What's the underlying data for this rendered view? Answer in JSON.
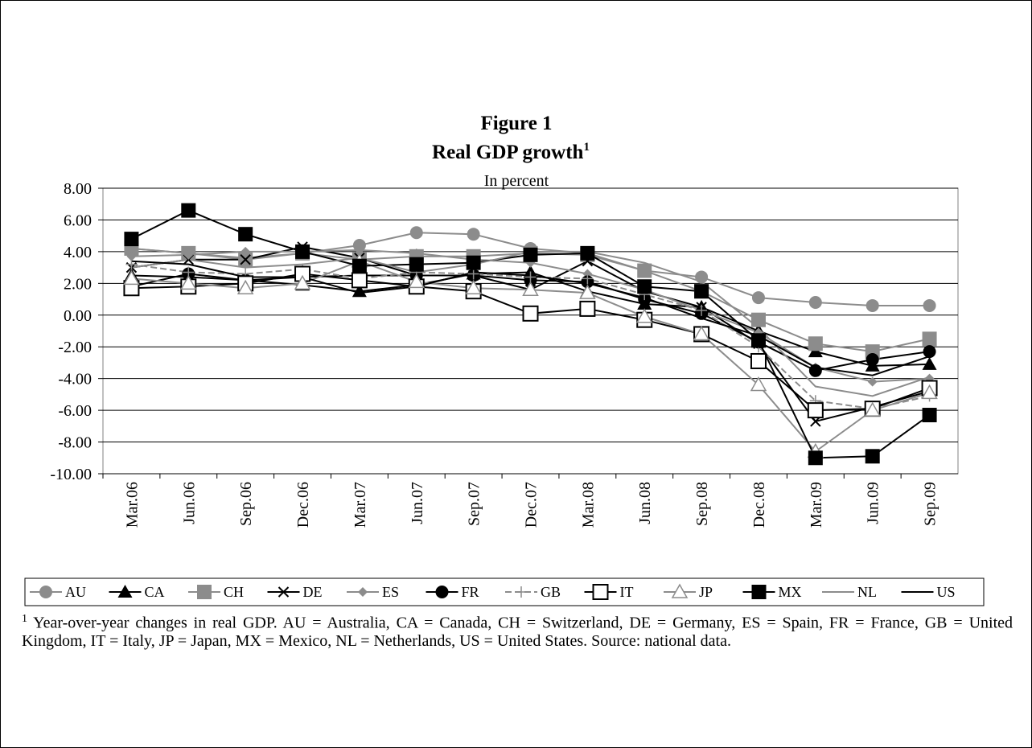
{
  "chart_data": {
    "type": "line",
    "title": "Figure 1",
    "subtitle": "Real GDP growth",
    "subtitle_footnote_mark": "1",
    "unit_label": "In percent",
    "categories": [
      "Mar.06",
      "Jun.06",
      "Sep.06",
      "Dec.06",
      "Mar.07",
      "Jun.07",
      "Sep.07",
      "Dec.07",
      "Mar.08",
      "Jun.08",
      "Sep.08",
      "Dec.08",
      "Mar.09",
      "Jun.09",
      "Sep.09"
    ],
    "ylim": [
      -10,
      8
    ],
    "yticks": [
      {
        "value": -10,
        "label": "-10.00"
      },
      {
        "value": -8,
        "label": "-8.00"
      },
      {
        "value": -6,
        "label": "-6.00"
      },
      {
        "value": -4,
        "label": "-4.00"
      },
      {
        "value": -2,
        "label": "-2.00"
      },
      {
        "value": 0,
        "label": "0.00"
      },
      {
        "value": 2,
        "label": "2.00"
      },
      {
        "value": 4,
        "label": "4.00"
      },
      {
        "value": 6,
        "label": "6.00"
      },
      {
        "value": 8,
        "label": "8.00"
      }
    ],
    "grid": true,
    "legend": "bottom",
    "series": [
      {
        "name": "AU",
        "color": "#8c8c8c",
        "marker": "circle",
        "values": [
          4.2,
          3.9,
          3.6,
          3.9,
          4.4,
          5.2,
          5.1,
          4.2,
          3.9,
          2.8,
          2.4,
          1.1,
          0.8,
          0.6,
          0.6
        ]
      },
      {
        "name": "CA",
        "color": "#000000",
        "marker": "triangle",
        "values": [
          2.5,
          2.4,
          2.2,
          1.9,
          1.5,
          1.9,
          2.6,
          2.7,
          1.5,
          0.7,
          0.5,
          -1.0,
          -2.3,
          -3.2,
          -3.1
        ]
      },
      {
        "name": "CH",
        "color": "#8c8c8c",
        "marker": "square",
        "values": [
          4.2,
          3.9,
          3.5,
          3.9,
          3.5,
          3.7,
          3.7,
          3.9,
          3.8,
          2.8,
          1.5,
          -0.3,
          -1.8,
          -2.3,
          -1.5
        ]
      },
      {
        "name": "DE",
        "color": "#000000",
        "marker": "x",
        "values": [
          3.0,
          3.5,
          3.5,
          4.3,
          3.6,
          2.5,
          2.5,
          1.6,
          3.4,
          1.5,
          0.5,
          -1.8,
          -6.7,
          -5.8,
          -4.8
        ]
      },
      {
        "name": "ES",
        "color": "#8c8c8c",
        "marker": "diamond",
        "values": [
          3.7,
          3.8,
          4.0,
          4.0,
          4.1,
          3.9,
          3.5,
          3.3,
          2.6,
          1.6,
          0.3,
          -1.1,
          -3.3,
          -4.2,
          -4.0
        ]
      },
      {
        "name": "FR",
        "color": "#000000",
        "marker": "circle",
        "values": [
          1.8,
          2.6,
          2.2,
          2.4,
          2.5,
          2.5,
          2.5,
          2.2,
          2.1,
          1.0,
          0.1,
          -1.7,
          -3.5,
          -2.8,
          -2.3
        ]
      },
      {
        "name": "GB",
        "color": "#8c8c8c",
        "marker": "plus",
        "dashed": true,
        "values": [
          3.2,
          2.7,
          2.6,
          2.9,
          2.3,
          2.7,
          2.6,
          2.4,
          2.3,
          1.3,
          0.3,
          -2.0,
          -5.4,
          -5.9,
          -5.1
        ]
      },
      {
        "name": "IT",
        "color": "#000000",
        "marker": "square-open",
        "values": [
          1.7,
          1.8,
          2.0,
          2.6,
          2.2,
          1.8,
          1.5,
          0.1,
          0.4,
          -0.3,
          -1.2,
          -2.9,
          -6.0,
          -5.9,
          -4.6
        ]
      },
      {
        "name": "JP",
        "color": "#8c8c8c",
        "marker": "triangle-open",
        "values": [
          2.3,
          2.0,
          1.7,
          2.0,
          3.4,
          2.1,
          1.7,
          1.6,
          1.4,
          -0.1,
          -1.2,
          -4.4,
          -8.6,
          -6.0,
          -4.9
        ]
      },
      {
        "name": "MX",
        "color": "#000000",
        "marker": "square",
        "values": [
          4.8,
          6.6,
          5.1,
          4.0,
          3.1,
          3.2,
          3.3,
          3.8,
          3.9,
          1.8,
          1.5,
          -1.6,
          -9.0,
          -8.9,
          -6.3
        ]
      },
      {
        "name": "NL",
        "color": "#8c8c8c",
        "marker": "none",
        "values": [
          3.0,
          3.5,
          3.0,
          3.2,
          3.6,
          2.7,
          3.2,
          4.0,
          4.0,
          3.3,
          2.1,
          -0.8,
          -4.5,
          -5.1,
          -3.9
        ]
      },
      {
        "name": "US",
        "color": "#000000",
        "marker": "none",
        "values": [
          3.4,
          3.2,
          2.4,
          2.4,
          1.4,
          1.8,
          2.7,
          2.5,
          2.0,
          1.1,
          -0.2,
          -1.3,
          -3.3,
          -3.8,
          -2.6
        ]
      }
    ],
    "footnote": {
      "mark": "1",
      "text": "Year-over-year changes in real GDP. AU = Australia, CA = Canada, CH = Switzerland, DE = Germany, ES = Spain, FR = France, GB = United Kingdom, IT = Italy, JP = Japan, MX = Mexico, NL = Netherlands, US = United States. Source: national data."
    }
  }
}
